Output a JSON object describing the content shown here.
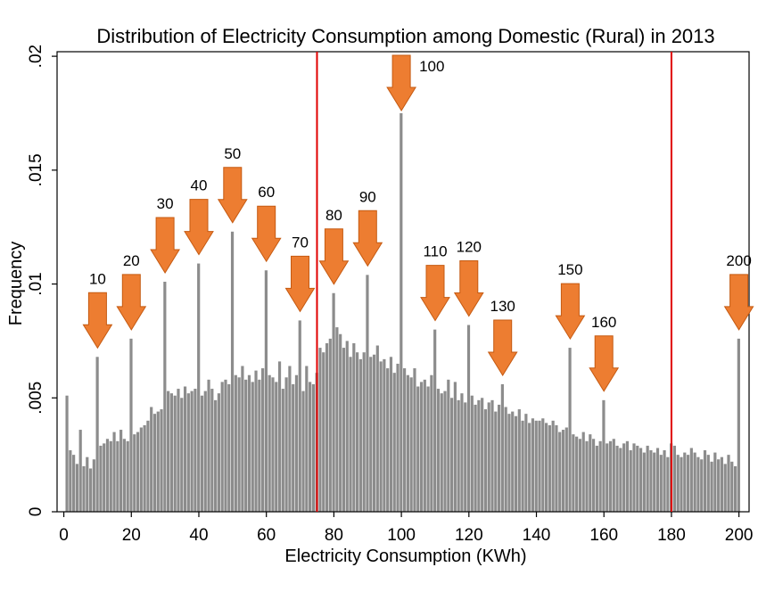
{
  "chart_data": {
    "type": "bar",
    "title": "Distribution of Electricity Consumption among Domestic (Rural) in 2013",
    "xlabel": "Electricity Consumption (KWh)",
    "ylabel": "Frequency",
    "xlim": [
      -2,
      203
    ],
    "ylim": [
      0,
      0.0202
    ],
    "x_ticks": [
      0,
      20,
      40,
      60,
      80,
      100,
      120,
      140,
      160,
      180,
      200
    ],
    "x_tick_labels": [
      "0",
      "20",
      "40",
      "60",
      "80",
      "100",
      "120",
      "140",
      "160",
      "180",
      "200"
    ],
    "y_ticks": [
      0,
      0.005,
      0.01,
      0.015,
      0.02
    ],
    "y_tick_labels": [
      "0",
      ".005",
      ".01",
      ".015",
      ".02"
    ],
    "bar_color": "#8c8c8c",
    "reference_lines": {
      "x": [
        75,
        180
      ],
      "color": "#e00000"
    },
    "arrow_color": "#ed7d31",
    "annotations": [
      {
        "x": 10,
        "label": "10",
        "y": 0.0068
      },
      {
        "x": 20,
        "label": "20",
        "y": 0.0076
      },
      {
        "x": 30,
        "label": "30",
        "y": 0.0101
      },
      {
        "x": 40,
        "label": "40",
        "y": 0.0109
      },
      {
        "x": 50,
        "label": "50",
        "y": 0.0123
      },
      {
        "x": 60,
        "label": "60",
        "y": 0.0106
      },
      {
        "x": 70,
        "label": "70",
        "y": 0.0084
      },
      {
        "x": 80,
        "label": "80",
        "y": 0.0096
      },
      {
        "x": 90,
        "label": "90",
        "y": 0.0104
      },
      {
        "x": 100,
        "label": "100",
        "y": 0.0175
      },
      {
        "x": 110,
        "label": "110",
        "y": 0.008
      },
      {
        "x": 120,
        "label": "120",
        "y": 0.0082
      },
      {
        "x": 130,
        "label": "130",
        "y": 0.0056
      },
      {
        "x": 150,
        "label": "150",
        "y": 0.0072
      },
      {
        "x": 160,
        "label": "160",
        "y": 0.0049
      },
      {
        "x": 200,
        "label": "200",
        "y": 0.0076
      }
    ],
    "x": [
      1,
      2,
      3,
      4,
      5,
      6,
      7,
      8,
      9,
      10,
      11,
      12,
      13,
      14,
      15,
      16,
      17,
      18,
      19,
      20,
      21,
      22,
      23,
      24,
      25,
      26,
      27,
      28,
      29,
      30,
      31,
      32,
      33,
      34,
      35,
      36,
      37,
      38,
      39,
      40,
      41,
      42,
      43,
      44,
      45,
      46,
      47,
      48,
      49,
      50,
      51,
      52,
      53,
      54,
      55,
      56,
      57,
      58,
      59,
      60,
      61,
      62,
      63,
      64,
      65,
      66,
      67,
      68,
      69,
      70,
      71,
      72,
      73,
      74,
      75,
      76,
      77,
      78,
      79,
      80,
      81,
      82,
      83,
      84,
      85,
      86,
      87,
      88,
      89,
      90,
      91,
      92,
      93,
      94,
      95,
      96,
      97,
      98,
      99,
      100,
      101,
      102,
      103,
      104,
      105,
      106,
      107,
      108,
      109,
      110,
      111,
      112,
      113,
      114,
      115,
      116,
      117,
      118,
      119,
      120,
      121,
      122,
      123,
      124,
      125,
      126,
      127,
      128,
      129,
      130,
      131,
      132,
      133,
      134,
      135,
      136,
      137,
      138,
      139,
      140,
      141,
      142,
      143,
      144,
      145,
      146,
      147,
      148,
      149,
      150,
      151,
      152,
      153,
      154,
      155,
      156,
      157,
      158,
      159,
      160,
      161,
      162,
      163,
      164,
      165,
      166,
      167,
      168,
      169,
      170,
      171,
      172,
      173,
      174,
      175,
      176,
      177,
      178,
      179,
      180,
      181,
      182,
      183,
      184,
      185,
      186,
      187,
      188,
      189,
      190,
      191,
      192,
      193,
      194,
      195,
      196,
      197,
      198,
      199,
      200
    ],
    "values": [
      0.0051,
      0.0027,
      0.0025,
      0.0021,
      0.0036,
      0.002,
      0.0024,
      0.0019,
      0.0023,
      0.0068,
      0.0029,
      0.003,
      0.0032,
      0.0031,
      0.0035,
      0.0031,
      0.0036,
      0.0032,
      0.0031,
      0.0076,
      0.0034,
      0.0035,
      0.0037,
      0.0038,
      0.004,
      0.0046,
      0.0043,
      0.0044,
      0.0045,
      0.0101,
      0.0053,
      0.0052,
      0.0051,
      0.0054,
      0.005,
      0.0055,
      0.0052,
      0.0053,
      0.0054,
      0.0109,
      0.0051,
      0.0053,
      0.0058,
      0.0054,
      0.0049,
      0.0052,
      0.0057,
      0.0058,
      0.0056,
      0.0123,
      0.006,
      0.0059,
      0.0064,
      0.0058,
      0.006,
      0.0057,
      0.0062,
      0.0058,
      0.0063,
      0.0106,
      0.006,
      0.0059,
      0.0057,
      0.0066,
      0.0054,
      0.0059,
      0.0064,
      0.0056,
      0.006,
      0.0084,
      0.0053,
      0.0064,
      0.0057,
      0.0056,
      0.0061,
      0.0072,
      0.007,
      0.0074,
      0.0076,
      0.0096,
      0.0081,
      0.0078,
      0.0072,
      0.0075,
      0.0068,
      0.0074,
      0.007,
      0.0067,
      0.007,
      0.0104,
      0.0068,
      0.0069,
      0.0073,
      0.0066,
      0.0067,
      0.0063,
      0.0068,
      0.0061,
      0.0065,
      0.0175,
      0.0063,
      0.006,
      0.0059,
      0.0063,
      0.0055,
      0.0057,
      0.0058,
      0.0055,
      0.006,
      0.008,
      0.0054,
      0.0052,
      0.0053,
      0.0058,
      0.005,
      0.0057,
      0.0049,
      0.0052,
      0.0048,
      0.0082,
      0.0051,
      0.0047,
      0.0049,
      0.005,
      0.0045,
      0.0048,
      0.0049,
      0.0044,
      0.0047,
      0.0056,
      0.0046,
      0.0043,
      0.0044,
      0.0042,
      0.0045,
      0.004,
      0.0043,
      0.0039,
      0.0041,
      0.004,
      0.004,
      0.0041,
      0.0039,
      0.0038,
      0.004,
      0.0038,
      0.0035,
      0.0036,
      0.0037,
      0.0072,
      0.0034,
      0.0033,
      0.0032,
      0.0035,
      0.0031,
      0.0034,
      0.0032,
      0.0029,
      0.0031,
      0.0049,
      0.003,
      0.0031,
      0.0032,
      0.0029,
      0.0028,
      0.003,
      0.0031,
      0.0027,
      0.003,
      0.0029,
      0.0028,
      0.0026,
      0.0029,
      0.0027,
      0.0026,
      0.0028,
      0.0025,
      0.0027,
      0.0024,
      0.003,
      0.0029,
      0.0025,
      0.0024,
      0.0026,
      0.0025,
      0.0028,
      0.0026,
      0.0024,
      0.0023,
      0.0027,
      0.0025,
      0.0022,
      0.0026,
      0.0023,
      0.0024,
      0.0021,
      0.0025,
      0.0022,
      0.002,
      0.0076
    ]
  }
}
